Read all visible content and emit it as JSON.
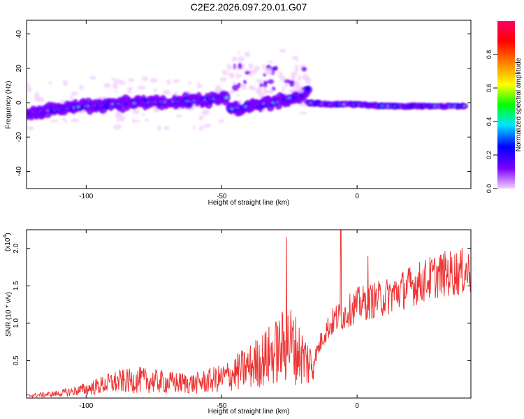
{
  "title": "C2E2.2026.097.20.01.G07",
  "chart_data": [
    {
      "type": "heatmap",
      "xlabel": "Height of straight line (km)",
      "ylabel": "Frequency (Hz)",
      "xlim": [
        -122,
        42
      ],
      "ylim": [
        -50,
        48
      ],
      "xticks": [
        -100,
        -50,
        0
      ],
      "yticks": [
        -40,
        -20,
        0,
        20,
        40
      ],
      "colorbar": {
        "label": "Normalized spectral amplitude",
        "range": [
          0,
          1
        ],
        "ticks": [
          "0.0",
          "0.2",
          "0.4",
          "0.6",
          "0.8"
        ],
        "colormap": [
          "#f4d2ff",
          "#7b00ff",
          "#0000ff",
          "#00e5ff",
          "#00ff00",
          "#ffff00",
          "#ff8000",
          "#ff0000",
          "#ff0066"
        ]
      },
      "ridge": {
        "segments": [
          {
            "x": [
              -122,
              -100,
              -80,
              -60,
              -48
            ],
            "y": [
              -6,
              -2,
              0,
              1,
              3
            ]
          },
          {
            "x": [
              -47,
              -40,
              -30,
              -20,
              -18
            ],
            "y": [
              -4,
              -2,
              0,
              5,
              8
            ]
          },
          {
            "x": [
              -18,
              -10,
              0,
              10,
              20,
              30,
              40
            ],
            "y": [
              0,
              -1,
              -1,
              -2,
              -2,
              -2,
              -2
            ]
          }
        ],
        "strong_range_x": [
          -18,
          40
        ]
      }
    },
    {
      "type": "line",
      "xlabel": "Height of straight line (km)",
      "ylabel": "SNR (10 * v/v)",
      "y_multiplier": "(x10",
      "y_multiplier_exp": "4",
      "y_multiplier_close": ")",
      "xlim": [
        -122,
        42
      ],
      "ylim": [
        0,
        2.25
      ],
      "xticks": [
        -100,
        -50,
        0
      ],
      "yticks": [
        "0.5",
        "1.0",
        "1.5",
        "2.0"
      ],
      "color": "#ee3333",
      "envelope": {
        "x": [
          -122,
          -110,
          -100,
          -90,
          -80,
          -70,
          -60,
          -50,
          -40,
          -30,
          -25,
          -20,
          -16,
          -12,
          -8,
          -5,
          0,
          10,
          20,
          30,
          40
        ],
        "y": [
          0.04,
          0.08,
          0.16,
          0.28,
          0.32,
          0.28,
          0.26,
          0.35,
          0.55,
          0.82,
          1.0,
          0.72,
          0.55,
          0.95,
          1.15,
          1.2,
          1.35,
          1.45,
          1.62,
          1.78,
          1.83
        ]
      },
      "peaks": [
        {
          "x": -26,
          "y": 2.15
        },
        {
          "x": -6,
          "y": 2.25
        },
        {
          "x": 4,
          "y": 1.9
        }
      ]
    }
  ]
}
